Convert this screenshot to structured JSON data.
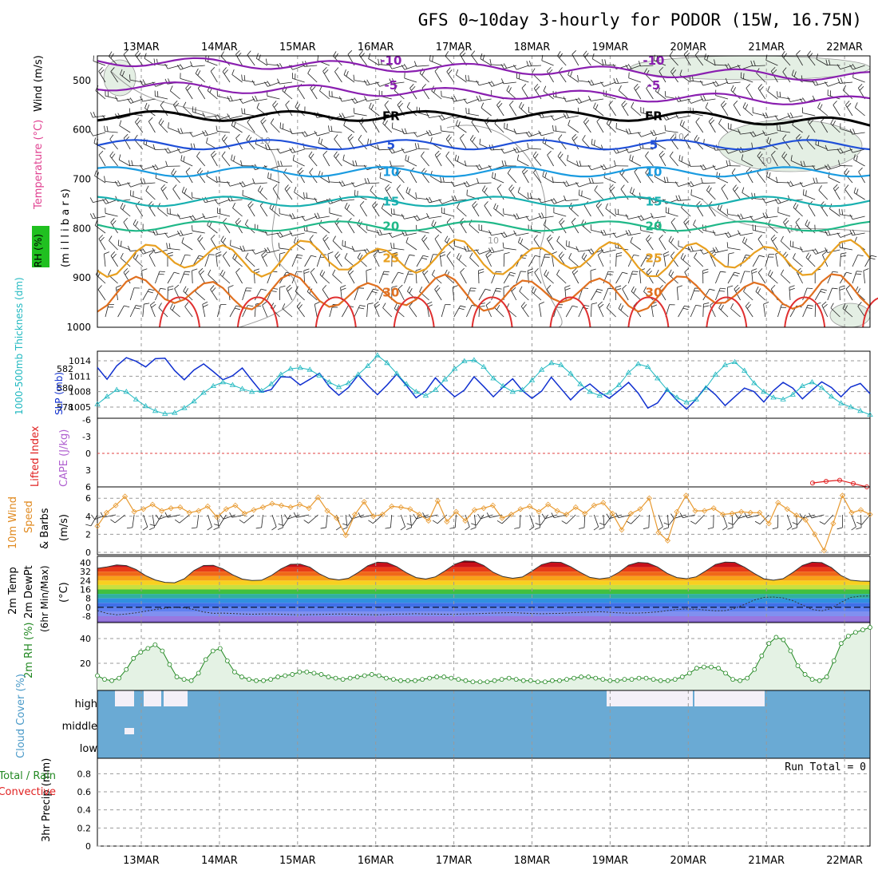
{
  "title": "GFS 0~10day 3-hourly for PODOR (15W, 16.75N)",
  "dates": [
    "13MAR",
    "14MAR",
    "15MAR",
    "16MAR",
    "17MAR",
    "18MAR",
    "19MAR",
    "20MAR",
    "21MAR",
    "22MAR"
  ],
  "chart_data": [
    {
      "type": "line",
      "name": "upper-air",
      "ylabel": "Wind (m/s)",
      "ylabel_parts": [
        "RH (%)",
        "Temperature (°C)",
        "Wind (m/s)",
        "(m i l l i b a r s)"
      ],
      "y_ticks": [
        500,
        600,
        700,
        800,
        900,
        1000
      ],
      "ylim": [
        450,
        1000
      ],
      "isotherms": [
        {
          "label": "-10",
          "level": 460,
          "color": "#8a1fb0"
        },
        {
          "label": "-5",
          "level": 510,
          "color": "#8a1fb0"
        },
        {
          "label": "FR",
          "level": 572,
          "color": "#000000"
        },
        {
          "label": "5",
          "level": 630,
          "color": "#2050d8"
        },
        {
          "label": "10",
          "level": 685,
          "color": "#1a9be0"
        },
        {
          "label": "15",
          "level": 745,
          "color": "#18b0b0"
        },
        {
          "label": "20",
          "level": 795,
          "color": "#20b888"
        },
        {
          "label": "25",
          "level": 860,
          "color": "#e8a020"
        },
        {
          "label": "30",
          "level": 930,
          "color": "#e07020"
        }
      ],
      "rh_labels": [
        "10",
        "10",
        "10",
        "10",
        "10"
      ]
    },
    {
      "type": "line",
      "name": "slp-thickness",
      "ylabel": "SLP (mb)",
      "ylabel2": "1000-500mb Thickness (dm)",
      "slp_ticks": [
        1014,
        1011,
        1008,
        1005
      ],
      "thick_ticks": [
        582,
        580,
        578
      ],
      "series": [
        {
          "name": "SLP",
          "color": "#1030d0",
          "values": [
            1012.7,
            1010.4,
            1013.0,
            1014.6,
            1013.9,
            1012.8,
            1014.4,
            1014.5,
            1012.1,
            1010.3,
            1012.2,
            1013.4,
            1011.9,
            1010.3,
            1011.1,
            1012.6,
            1010.2,
            1007.9,
            1008.4,
            1010.9,
            1010.8,
            1009.3,
            1010.4,
            1011.6,
            1009.0,
            1007.3,
            1008.8,
            1011.2,
            1009.2,
            1007.4,
            1009.3,
            1011.4,
            1009.2,
            1006.8,
            1008.1,
            1010.7,
            1008.7,
            1007.0,
            1008.3,
            1010.9,
            1009.0,
            1007.0,
            1008.9,
            1010.5,
            1008.2,
            1006.7,
            1008.1,
            1010.8,
            1008.6,
            1006.4,
            1008.3,
            1009.5,
            1007.9,
            1006.7,
            1008.2,
            1009.8,
            1007.7,
            1004.8,
            1005.8,
            1008.4,
            1006.3,
            1004.6,
            1006.5,
            1009.0,
            1007.4,
            1005.3,
            1007.0,
            1008.7,
            1008.0,
            1006.0,
            1008.2,
            1009.8,
            1008.7,
            1006.6,
            1008.3,
            1009.9,
            1008.8,
            1007.0,
            1008.9,
            1009.6,
            1007.6
          ]
        },
        {
          "name": "Thickness",
          "color": "#20b8c0",
          "values": [
            578.3,
            579.1,
            579.8,
            579.6,
            578.8,
            578.1,
            577.6,
            577.3,
            577.4,
            577.9,
            578.6,
            579.5,
            580.2,
            580.6,
            580.3,
            579.9,
            579.6,
            579.7,
            580.4,
            581.4,
            582.0,
            582.1,
            581.9,
            581.3,
            580.6,
            580.1,
            580.5,
            581.4,
            582.3,
            583.4,
            582.6,
            581.5,
            580.4,
            579.6,
            579.2,
            579.8,
            580.9,
            582.0,
            582.8,
            582.9,
            582.2,
            581.0,
            580.2,
            579.6,
            579.8,
            580.8,
            581.9,
            582.6,
            582.4,
            581.5,
            580.4,
            579.6,
            579.2,
            579.5,
            580.3,
            581.6,
            582.5,
            582.2,
            581.0,
            579.8,
            579.0,
            578.5,
            578.8,
            580.0,
            581.4,
            582.4,
            582.7,
            581.8,
            580.5,
            579.6,
            579.0,
            578.8,
            579.3,
            580.2,
            580.6,
            580.0,
            579.1,
            578.4,
            578.0,
            577.6,
            577.2
          ]
        }
      ]
    },
    {
      "type": "line",
      "name": "stability",
      "ylabel": "Lifted Index",
      "ylabel2": "CAPE (J/kg)",
      "y_ticks": [
        "-6",
        "-3",
        "0",
        "3",
        "6"
      ],
      "series": [
        {
          "name": "Lifted Index",
          "color": "#e02020",
          "values": [
            5.3,
            5.0,
            4.8,
            5.4,
            6.0
          ]
        }
      ]
    },
    {
      "type": "line",
      "name": "wind10m",
      "ylabel": "10m Wind Speed & Barbs (m/s)",
      "ylabel_parts": [
        "10m Wind",
        "Speed",
        "& Barbs",
        "(m/s)"
      ],
      "y_ticks": [
        0,
        2,
        4,
        6
      ],
      "ylim": [
        0,
        7
      ],
      "series": [
        {
          "name": "10m Wind Speed",
          "color": "#e89a30",
          "values": [
            2.9,
            4.4,
            5.2,
            6.2,
            4.5,
            4.8,
            5.3,
            4.6,
            4.9,
            5.0,
            4.4,
            4.6,
            5.1,
            3.9,
            4.8,
            5.2,
            4.3,
            4.7,
            5.0,
            5.4,
            5.2,
            5.0,
            5.3,
            4.9,
            6.1,
            4.6,
            3.8,
            1.9,
            4.2,
            5.6,
            4.0,
            4.2,
            5.1,
            5.0,
            4.8,
            4.2,
            3.5,
            5.7,
            3.4,
            4.5,
            3.5,
            4.7,
            4.9,
            5.2,
            3.8,
            4.2,
            4.8,
            5.1,
            4.5,
            5.3,
            4.6,
            4.2,
            5.0,
            4.3,
            5.2,
            5.5,
            4.3,
            2.5,
            4.3,
            4.8,
            6.0,
            2.2,
            1.3,
            4.5,
            6.3,
            4.6,
            4.6,
            4.9,
            4.2,
            4.3,
            4.5,
            4.4,
            4.4,
            3.2,
            5.5,
            4.8,
            4.1,
            3.6,
            2.0,
            0.2,
            3.2,
            6.3,
            4.4,
            4.7,
            4.2
          ]
        }
      ]
    },
    {
      "type": "area",
      "name": "temp2m",
      "ylabel": "2m Temp 2m DewPt (6hr Min/Max) (°C)",
      "ylabel_parts": [
        "2m Temp",
        "2m DewPt",
        "(6hr Min/Max)",
        "(°C)"
      ],
      "y_ticks": [
        "40",
        "32",
        "24",
        "16",
        "8",
        "0",
        "-8"
      ],
      "ylim": [
        -16,
        44
      ],
      "series": [
        {
          "name": "2m Temp",
          "values": [
            35.0,
            36.2,
            38.0,
            37.4,
            34.0,
            28.4,
            24.5,
            22.4,
            22.0,
            25.6,
            33.0,
            37.5,
            37.7,
            34.4,
            29.2,
            25.3,
            24.0,
            24.3,
            28.5,
            34.4,
            38.6,
            38.8,
            36.0,
            30.0,
            25.8,
            24.6,
            26.0,
            31.2,
            37.3,
            40.4,
            40.1,
            36.5,
            31.0,
            26.7,
            25.4,
            27.3,
            32.7,
            38.6,
            41.6,
            41.2,
            37.6,
            31.3,
            27.5,
            26.0,
            27.2,
            32.4,
            38.3,
            40.6,
            40.3,
            36.5,
            31.3,
            26.8,
            25.5,
            26.6,
            31.4,
            37.8,
            40.3,
            39.7,
            36.2,
            30.5,
            26.7,
            25.7,
            27.3,
            32.7,
            38.4,
            40.5,
            40.3,
            36.0,
            30.5,
            25.6,
            24.3,
            25.7,
            31.2,
            37.5,
            40.4,
            40.1,
            35.6,
            28.5,
            24.3,
            23.5,
            23.3
          ]
        },
        {
          "name": "2m DewPt",
          "values": [
            -3.0,
            -5.5,
            -6.7,
            -6.0,
            -5.0,
            -3.5,
            -2.0,
            -0.8,
            0.0,
            -0.5,
            -2.0,
            -4.2,
            -5.4,
            -5.2,
            -5.6,
            -6.0,
            -6.2,
            -6.0,
            -5.9,
            -6.2,
            -6.5,
            -6.8,
            -6.6,
            -6.4,
            -6.2,
            -6.0,
            -6.1,
            -6.4,
            -6.6,
            -6.8,
            -6.4,
            -6.1,
            -6.0,
            -5.8,
            -6.0,
            -6.1,
            -6.3,
            -6.2,
            -6.0,
            -5.8,
            -5.5,
            -5.2,
            -5.0,
            -4.8,
            -5.2,
            -5.6,
            -5.8,
            -5.6,
            -5.4,
            -5.0,
            -4.6,
            -4.2,
            -4.0,
            -4.5,
            -5.0,
            -5.3,
            -5.2,
            -4.8,
            -4.1,
            -3.0,
            -2.0,
            -1.5,
            -1.8,
            -2.5,
            -3.2,
            -3.0,
            -1.0,
            2.5,
            6.5,
            8.8,
            9.2,
            8.4,
            6.0,
            2.0,
            -2.0,
            -3.2,
            -1.0,
            4.5,
            8.8,
            10.0,
            10.2
          ]
        }
      ]
    },
    {
      "type": "area",
      "name": "rh2m",
      "ylabel": "2m RH (%)",
      "y_ticks": [
        20,
        40
      ],
      "ylim": [
        0,
        50
      ],
      "series": [
        {
          "name": "2m RH",
          "color": "#228822",
          "values": [
            10,
            7,
            6,
            8,
            15,
            24,
            29,
            32,
            35,
            30,
            19,
            9,
            7,
            6,
            12,
            23,
            30,
            32,
            22,
            13,
            9,
            7,
            6,
            6,
            7,
            9,
            10,
            11,
            13,
            13,
            12,
            11,
            9,
            8,
            7,
            8,
            9,
            10,
            11,
            10,
            8,
            7,
            6,
            6,
            6,
            7,
            8,
            9,
            9,
            8,
            7,
            6,
            5,
            5,
            5,
            6,
            7,
            8,
            7,
            6,
            6,
            5,
            5,
            6,
            6,
            7,
            8,
            9,
            9,
            8,
            7,
            6,
            6,
            7,
            7,
            8,
            8,
            7,
            6,
            6,
            7,
            9,
            12,
            16,
            17,
            17,
            16,
            12,
            7,
            6,
            8,
            15,
            26,
            36,
            41,
            39,
            30,
            18,
            11,
            7,
            6,
            9,
            22,
            36,
            42,
            45,
            47,
            49
          ]
        }
      ]
    },
    {
      "type": "area",
      "name": "cloud",
      "ylabel": "Cloud Cover (%)",
      "y_ticks": [
        "high",
        "middle",
        "low"
      ]
    },
    {
      "type": "bar",
      "name": "precip",
      "ylabel": "3hr Precip (mm)",
      "ylabel_parts": [
        "3hr Precip (mm)",
        "Total / Rain",
        "Convective"
      ],
      "y_ticks": [
        "0.8",
        "0.6",
        "0.4",
        "0.2",
        "0"
      ],
      "ylim": [
        0,
        0.9
      ],
      "run_total": "Run Total = 0",
      "series": [
        {
          "name": "Total",
          "values": []
        }
      ]
    }
  ]
}
